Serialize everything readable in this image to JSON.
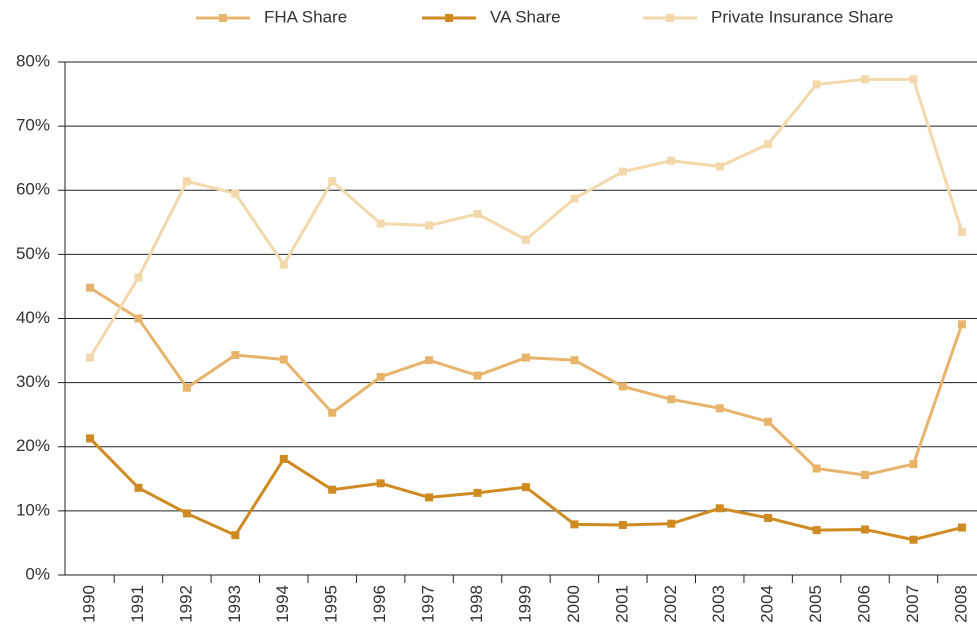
{
  "chart_data": {
    "type": "line",
    "categories": [
      "1990",
      "1991",
      "1992",
      "1993",
      "1994",
      "1995",
      "1996",
      "1997",
      "1998",
      "1999",
      "2000",
      "2001",
      "2002",
      "2003",
      "2004",
      "2005",
      "2006",
      "2007",
      "2008"
    ],
    "series": [
      {
        "name": "FHA Share",
        "color": "#e8b46c",
        "values": [
          44.8,
          40.0,
          29.2,
          34.3,
          33.6,
          25.3,
          30.9,
          33.5,
          31.1,
          33.9,
          33.5,
          29.4,
          27.4,
          26.0,
          23.9,
          16.6,
          15.6,
          17.3,
          39.1
        ]
      },
      {
        "name": "VA Share",
        "color": "#cf8a22",
        "values": [
          21.3,
          13.6,
          9.6,
          6.2,
          18.1,
          13.3,
          14.3,
          12.1,
          12.8,
          13.7,
          7.9,
          7.8,
          8.0,
          10.4,
          8.9,
          7.0,
          7.1,
          5.5,
          7.4
        ]
      },
      {
        "name": "Private Insurance Share",
        "color": "#f3d8ab",
        "values": [
          33.9,
          46.4,
          61.4,
          59.5,
          48.4,
          61.4,
          54.8,
          54.5,
          56.3,
          52.3,
          58.7,
          62.9,
          64.6,
          63.7,
          67.2,
          76.5,
          77.3,
          77.3,
          53.5
        ]
      }
    ],
    "ylim": [
      0,
      80
    ],
    "yticks": [
      {
        "value": 0,
        "label": "0%"
      },
      {
        "value": 10,
        "label": "10%"
      },
      {
        "value": 20,
        "label": "20%"
      },
      {
        "value": 30,
        "label": "30%"
      },
      {
        "value": 40,
        "label": "40%"
      },
      {
        "value": 50,
        "label": "50%"
      },
      {
        "value": 60,
        "label": "60%"
      },
      {
        "value": 70,
        "label": "70%"
      },
      {
        "value": 80,
        "label": "80%"
      }
    ],
    "grid": true,
    "legend": "top"
  }
}
